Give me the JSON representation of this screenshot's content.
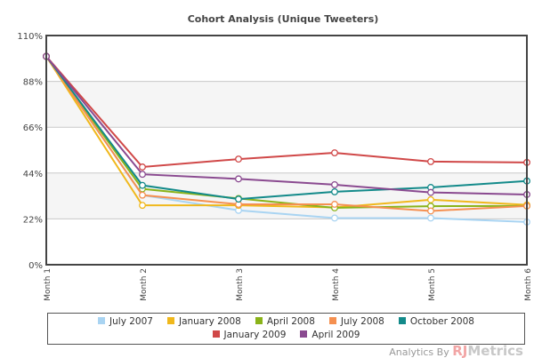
{
  "chart_data": {
    "type": "line",
    "title": "Cohort Analysis (Unique Tweeters)",
    "xlabel": "",
    "ylabel": "",
    "categories": [
      "Month 1",
      "Month 2",
      "Month 3",
      "Month 4",
      "Month 5",
      "Month 6"
    ],
    "yticks": [
      "0%",
      "22%",
      "44%",
      "66%",
      "88%",
      "110%"
    ],
    "ytick_values": [
      0,
      22,
      44,
      66,
      88,
      110
    ],
    "ylim": [
      0,
      110
    ],
    "legend_position": "bottom",
    "series": [
      {
        "name": "July 2007",
        "color": "#a9d4f2",
        "values": [
          100,
          33.4,
          26.1,
          22.4,
          22.4,
          20.5
        ]
      },
      {
        "name": "January 2008",
        "color": "#f0b81c",
        "values": [
          100,
          28.5,
          28.5,
          27.5,
          31.2,
          28.7
        ]
      },
      {
        "name": "April 2008",
        "color": "#8ab319",
        "values": [
          100,
          36.4,
          31.8,
          27.3,
          28.1,
          28.2
        ]
      },
      {
        "name": "July 2008",
        "color": "#f59050",
        "values": [
          100,
          33.4,
          29.0,
          29.0,
          25.8,
          28.2
        ]
      },
      {
        "name": "October 2008",
        "color": "#138a8a",
        "values": [
          100,
          38.1,
          31.5,
          35.0,
          37.1,
          40.2
        ]
      },
      {
        "name": "January 2009",
        "color": "#d04848",
        "values": [
          100,
          46.9,
          50.7,
          53.7,
          49.5,
          49.1
        ]
      },
      {
        "name": "April 2009",
        "color": "#8a4a90",
        "values": [
          100,
          43.4,
          41.2,
          38.4,
          34.7,
          33.7
        ]
      }
    ]
  },
  "footer": {
    "credit_prefix": "Analytics By",
    "brand_rj": "RJ",
    "brand_metrics": "Metrics"
  }
}
